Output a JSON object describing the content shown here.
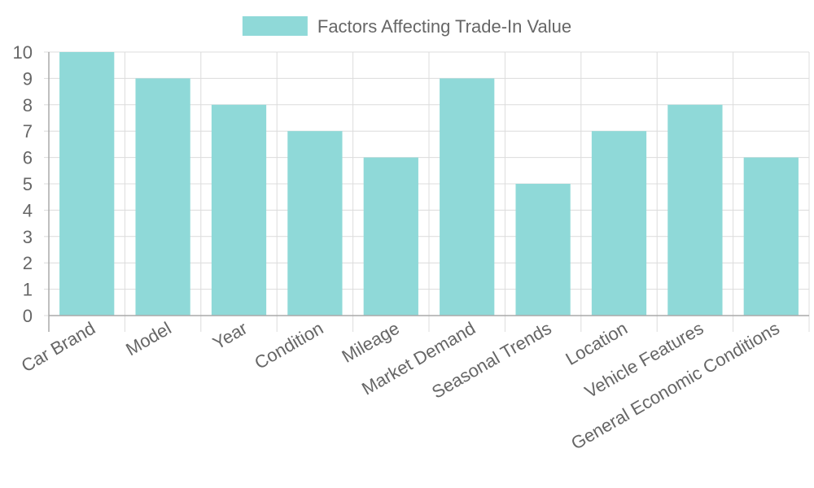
{
  "chart_data": {
    "type": "bar",
    "series": [
      {
        "name": "Factors Affecting Trade-In Value",
        "values": [
          10,
          9,
          8,
          7,
          6,
          9,
          5,
          7,
          8,
          6
        ],
        "color": "#8fd9d8"
      }
    ],
    "categories": [
      "Car Brand",
      "Model",
      "Year",
      "Condition",
      "Mileage",
      "Market Demand",
      "Seasonal Trends",
      "Location",
      "Vehicle Features",
      "General Economic Conditions"
    ],
    "ylim": [
      0,
      10
    ],
    "yticks": [
      "0",
      "1",
      "2",
      "3",
      "4",
      "5",
      "6",
      "7",
      "8",
      "9",
      "10"
    ],
    "grid": true,
    "legend_position": "top-center"
  }
}
